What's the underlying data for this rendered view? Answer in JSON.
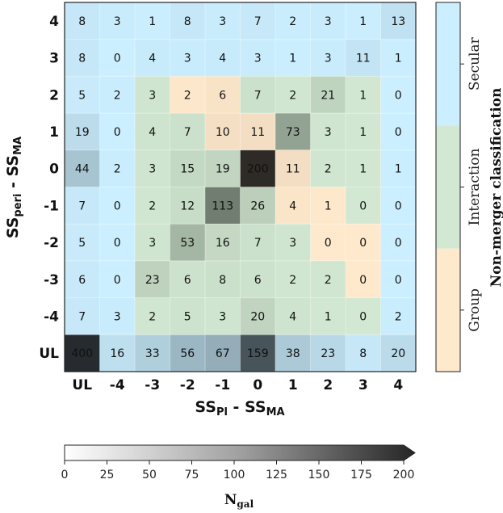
{
  "chart_data": {
    "type": "heatmap",
    "x_categories": [
      "UL",
      "-4",
      "-3",
      "-2",
      "-1",
      "0",
      "1",
      "2",
      "3",
      "4"
    ],
    "y_categories": [
      "4",
      "3",
      "2",
      "1",
      "0",
      "-1",
      "-2",
      "-3",
      "-4",
      "UL"
    ],
    "values": [
      [
        8,
        3,
        1,
        8,
        3,
        7,
        2,
        3,
        1,
        13
      ],
      [
        8,
        0,
        4,
        3,
        4,
        3,
        1,
        3,
        11,
        1
      ],
      [
        5,
        2,
        3,
        2,
        6,
        7,
        2,
        21,
        1,
        0
      ],
      [
        19,
        0,
        4,
        7,
        10,
        11,
        73,
        3,
        1,
        0
      ],
      [
        44,
        2,
        3,
        15,
        19,
        200,
        11,
        2,
        1,
        1
      ],
      [
        7,
        0,
        2,
        12,
        113,
        26,
        4,
        1,
        0,
        0
      ],
      [
        5,
        0,
        3,
        53,
        16,
        7,
        3,
        0,
        0,
        0
      ],
      [
        6,
        0,
        23,
        6,
        8,
        6,
        2,
        2,
        0,
        0
      ],
      [
        7,
        3,
        2,
        5,
        3,
        20,
        4,
        1,
        0,
        2
      ],
      [
        400,
        16,
        33,
        56,
        67,
        159,
        38,
        23,
        8,
        20
      ]
    ],
    "xlabel": {
      "main": "SS",
      "sub1": "Pl",
      "mid": " - SS",
      "sub2": "MA"
    },
    "ylabel": {
      "main": "SS",
      "sub1": "peri",
      "mid": " - SS",
      "sub2": "MA"
    },
    "classification_colorbar": {
      "title": "Non-merger classification",
      "classes": [
        {
          "label": "Secular",
          "color": "#ccefff"
        },
        {
          "label": "Interaction",
          "color": "#d2e8d2"
        },
        {
          "label": "Group",
          "color": "#ffe9cc"
        }
      ]
    },
    "ngal_colorbar": {
      "label_main": "N",
      "label_sub": "gal",
      "range": [
        0,
        200
      ],
      "ticks": [
        "0",
        "25",
        "50",
        "75",
        "100",
        "125",
        "150",
        "175",
        "200"
      ]
    }
  }
}
